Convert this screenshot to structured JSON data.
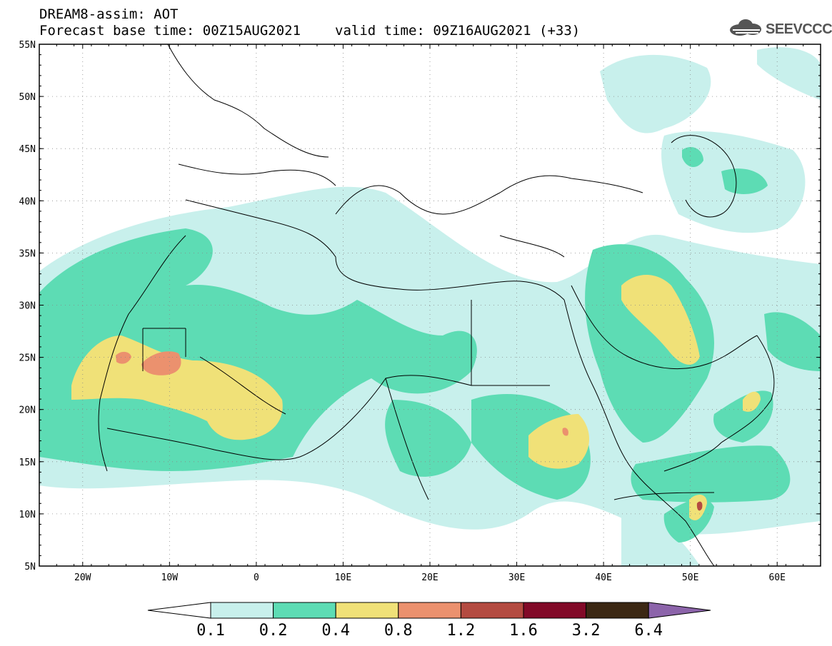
{
  "header": {
    "line1": "DREAM8-assim: AOT",
    "base": "Forecast base time: 00Z15AUG2021",
    "valid": "valid time: 09Z16AUG2021 (+33)"
  },
  "logo": {
    "text": "SEEVCCC",
    "icon": "cloud-icon"
  },
  "map": {
    "lon_range": [
      -25,
      65
    ],
    "lat_range": [
      5,
      55
    ],
    "lat_ticks": [
      "5N",
      "10N",
      "15N",
      "20N",
      "25N",
      "30N",
      "35N",
      "40N",
      "45N",
      "50N",
      "55N"
    ],
    "lon_ticks": [
      "20W",
      "10W",
      "0",
      "10E",
      "20E",
      "30E",
      "40E",
      "50E",
      "60E"
    ],
    "grid": "dotted"
  },
  "colorbar": {
    "labels": [
      "0.1",
      "0.2",
      "0.4",
      "0.8",
      "1.2",
      "1.6",
      "3.2",
      "6.4"
    ],
    "colors": [
      "#c8f0ec",
      "#5ddcb4",
      "#f0e178",
      "#eb916e",
      "#b44b41",
      "#820a28",
      "#3c2814",
      "#8c64aa"
    ],
    "extend": "both"
  },
  "chart_data": {
    "type": "heatmap",
    "title": "DREAM8-assim: AOT",
    "variable": "AOT",
    "levels": [
      0.1,
      0.2,
      0.4,
      0.8,
      1.2,
      1.6,
      3.2,
      6.4
    ],
    "xlim": [
      -25,
      65
    ],
    "ylim": [
      5,
      55
    ]
  }
}
